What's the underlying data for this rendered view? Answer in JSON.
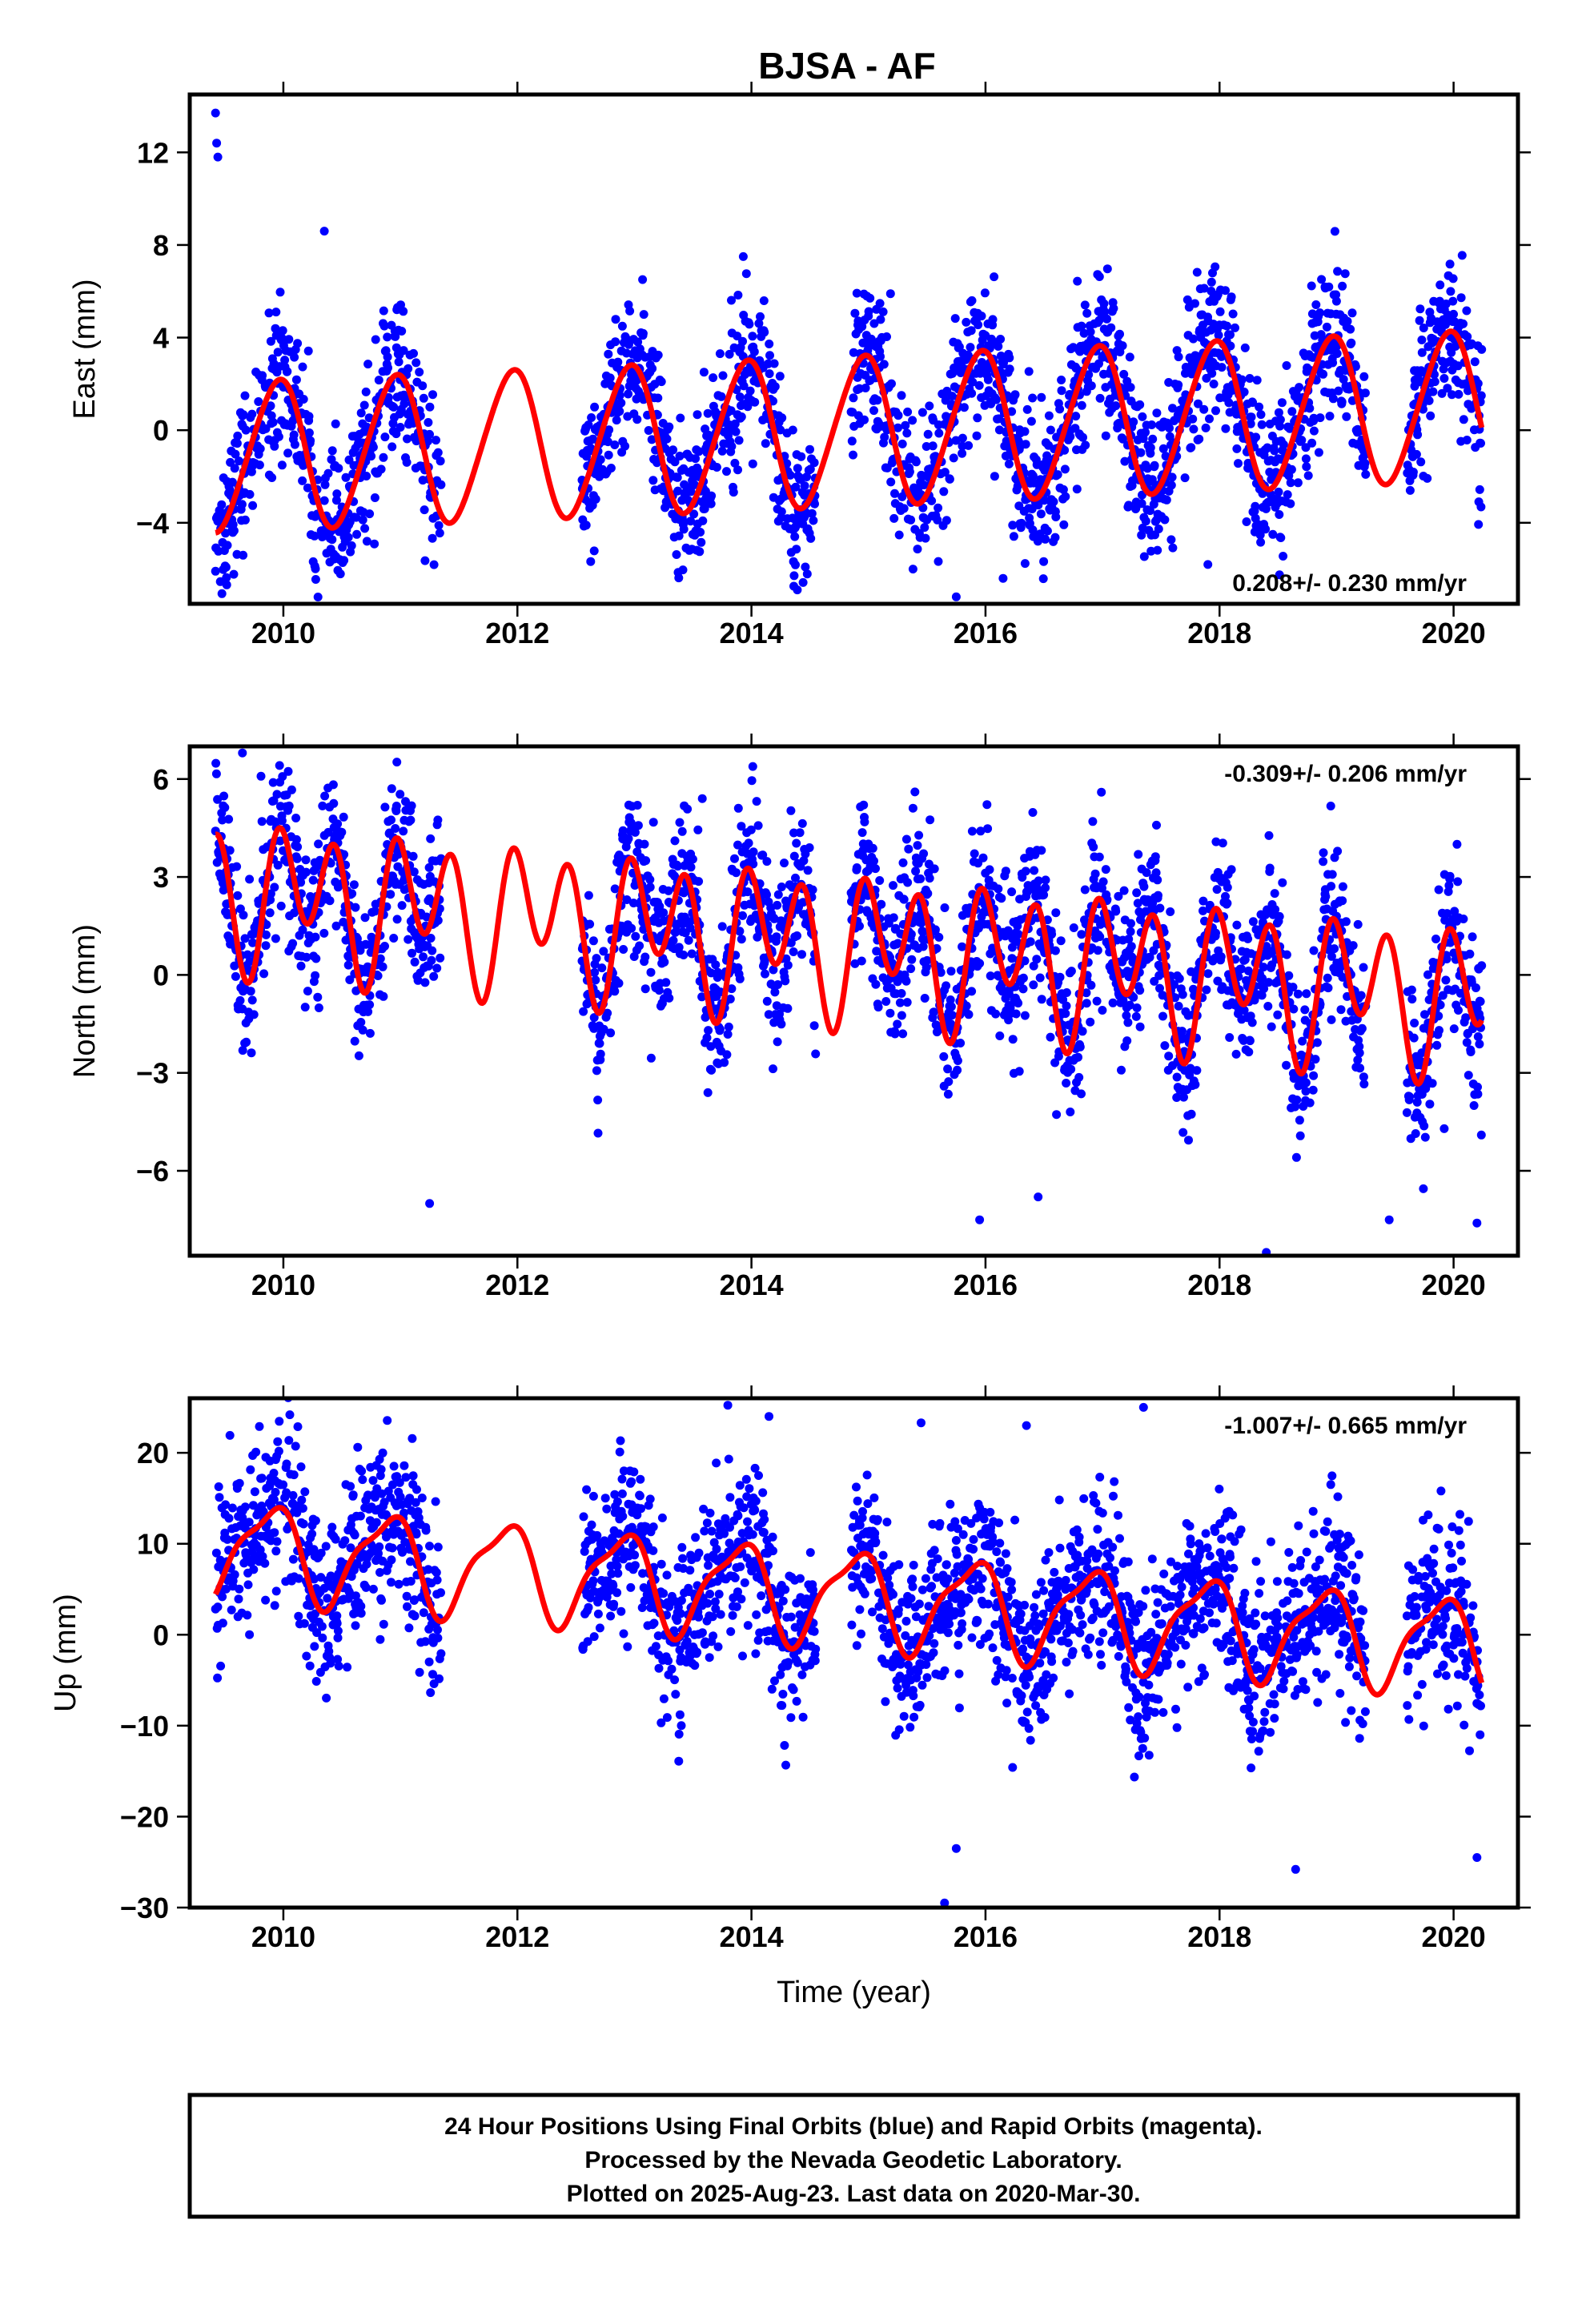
{
  "chart_data": {
    "title": "BJSA - AF",
    "type": "scatter",
    "xlabel": "Time (year)",
    "xlim": [
      2009.2,
      2020.55
    ],
    "xticks": [
      2010,
      2012,
      2014,
      2016,
      2018,
      2020
    ],
    "colors": {
      "final_orbits": "#0000ff",
      "model": "#ff0000"
    },
    "panels": [
      {
        "key": "east",
        "ylabel": "East (mm)",
        "ylim": [
          -7.5,
          14.5
        ],
        "yticks": [
          -4,
          0,
          4,
          8,
          12
        ],
        "ytick_labels": [
          "−4",
          "0",
          "4",
          "8",
          "12"
        ],
        "rate_text": "0.208+/- 0.230 mm/yr",
        "rate_position": "bottom-right",
        "model": {
          "offset": 0.0,
          "trend": 0.208,
          "annual_amp": 3.2,
          "annual_phase": 1.9,
          "semiannual_amp": 0.3,
          "semiannual_phase": 0.6
        },
        "noise_sd": 1.6,
        "outliers": [
          [
            2009.42,
            13.7
          ],
          [
            2009.43,
            12.4
          ],
          [
            2009.44,
            11.8
          ],
          [
            2010.35,
            8.6
          ],
          [
            2013.93,
            7.5
          ],
          [
            2015.75,
            -7.2
          ],
          [
            2016.15,
            -6.4
          ],
          [
            2017.9,
            -5.8
          ]
        ]
      },
      {
        "key": "north",
        "ylabel": "North (mm)",
        "ylim": [
          -8.6,
          7.0
        ],
        "yticks": [
          -6,
          -3,
          0,
          3,
          6
        ],
        "ytick_labels": [
          "−6",
          "−3",
          "0",
          "3",
          "6"
        ],
        "rate_text": "-0.309+/- 0.206 mm/yr",
        "rate_position": "top-right",
        "model": {
          "offset": 0.9,
          "trend": -0.309,
          "annual_amp": 1.0,
          "annual_phase": 0.5,
          "semiannual_amp": 1.8,
          "semiannual_phase": 2.2
        },
        "noise_sd": 1.2,
        "outliers": [
          [
            2009.65,
            6.8
          ],
          [
            2011.25,
            -7.0
          ],
          [
            2013.58,
            5.4
          ],
          [
            2015.95,
            -7.5
          ],
          [
            2016.45,
            -6.8
          ],
          [
            2018.4,
            -8.5
          ],
          [
            2019.45,
            -7.5
          ],
          [
            2020.2,
            -7.6
          ]
        ]
      },
      {
        "key": "up",
        "ylabel": "Up (mm)",
        "ylim": [
          -30.0,
          26.0
        ],
        "yticks": [
          -30,
          -20,
          -10,
          0,
          10,
          20
        ],
        "ytick_labels": [
          "−30",
          "−20",
          "−10",
          "0",
          "10",
          "20"
        ],
        "rate_text": "-1.007+/- 0.665 mm/yr",
        "rate_position": "top-right",
        "model": {
          "offset": 4.0,
          "trend": -1.007,
          "annual_amp": 5.0,
          "annual_phase": 2.3,
          "semiannual_amp": 1.5,
          "semiannual_phase": 0.8
        },
        "noise_sd": 4.5,
        "outliers": [
          [
            2014.15,
            24.0
          ],
          [
            2015.45,
            23.3
          ],
          [
            2016.35,
            23.0
          ],
          [
            2017.35,
            25.0
          ],
          [
            2015.65,
            -29.5
          ],
          [
            2015.75,
            -23.5
          ],
          [
            2018.65,
            -25.8
          ],
          [
            2020.2,
            -24.5
          ]
        ]
      }
    ],
    "data_gaps": [
      [
        2011.35,
        2012.55
      ],
      [
        2014.55,
        2014.85
      ],
      [
        2019.25,
        2019.6
      ]
    ]
  },
  "footer": {
    "line1": "24 Hour Positions Using Final Orbits (blue) and Rapid Orbits (magenta).",
    "line2": "Processed by the Nevada Geodetic Laboratory.",
    "line3": "Plotted on 2025-Aug-23. Last data on 2020-Mar-30."
  }
}
